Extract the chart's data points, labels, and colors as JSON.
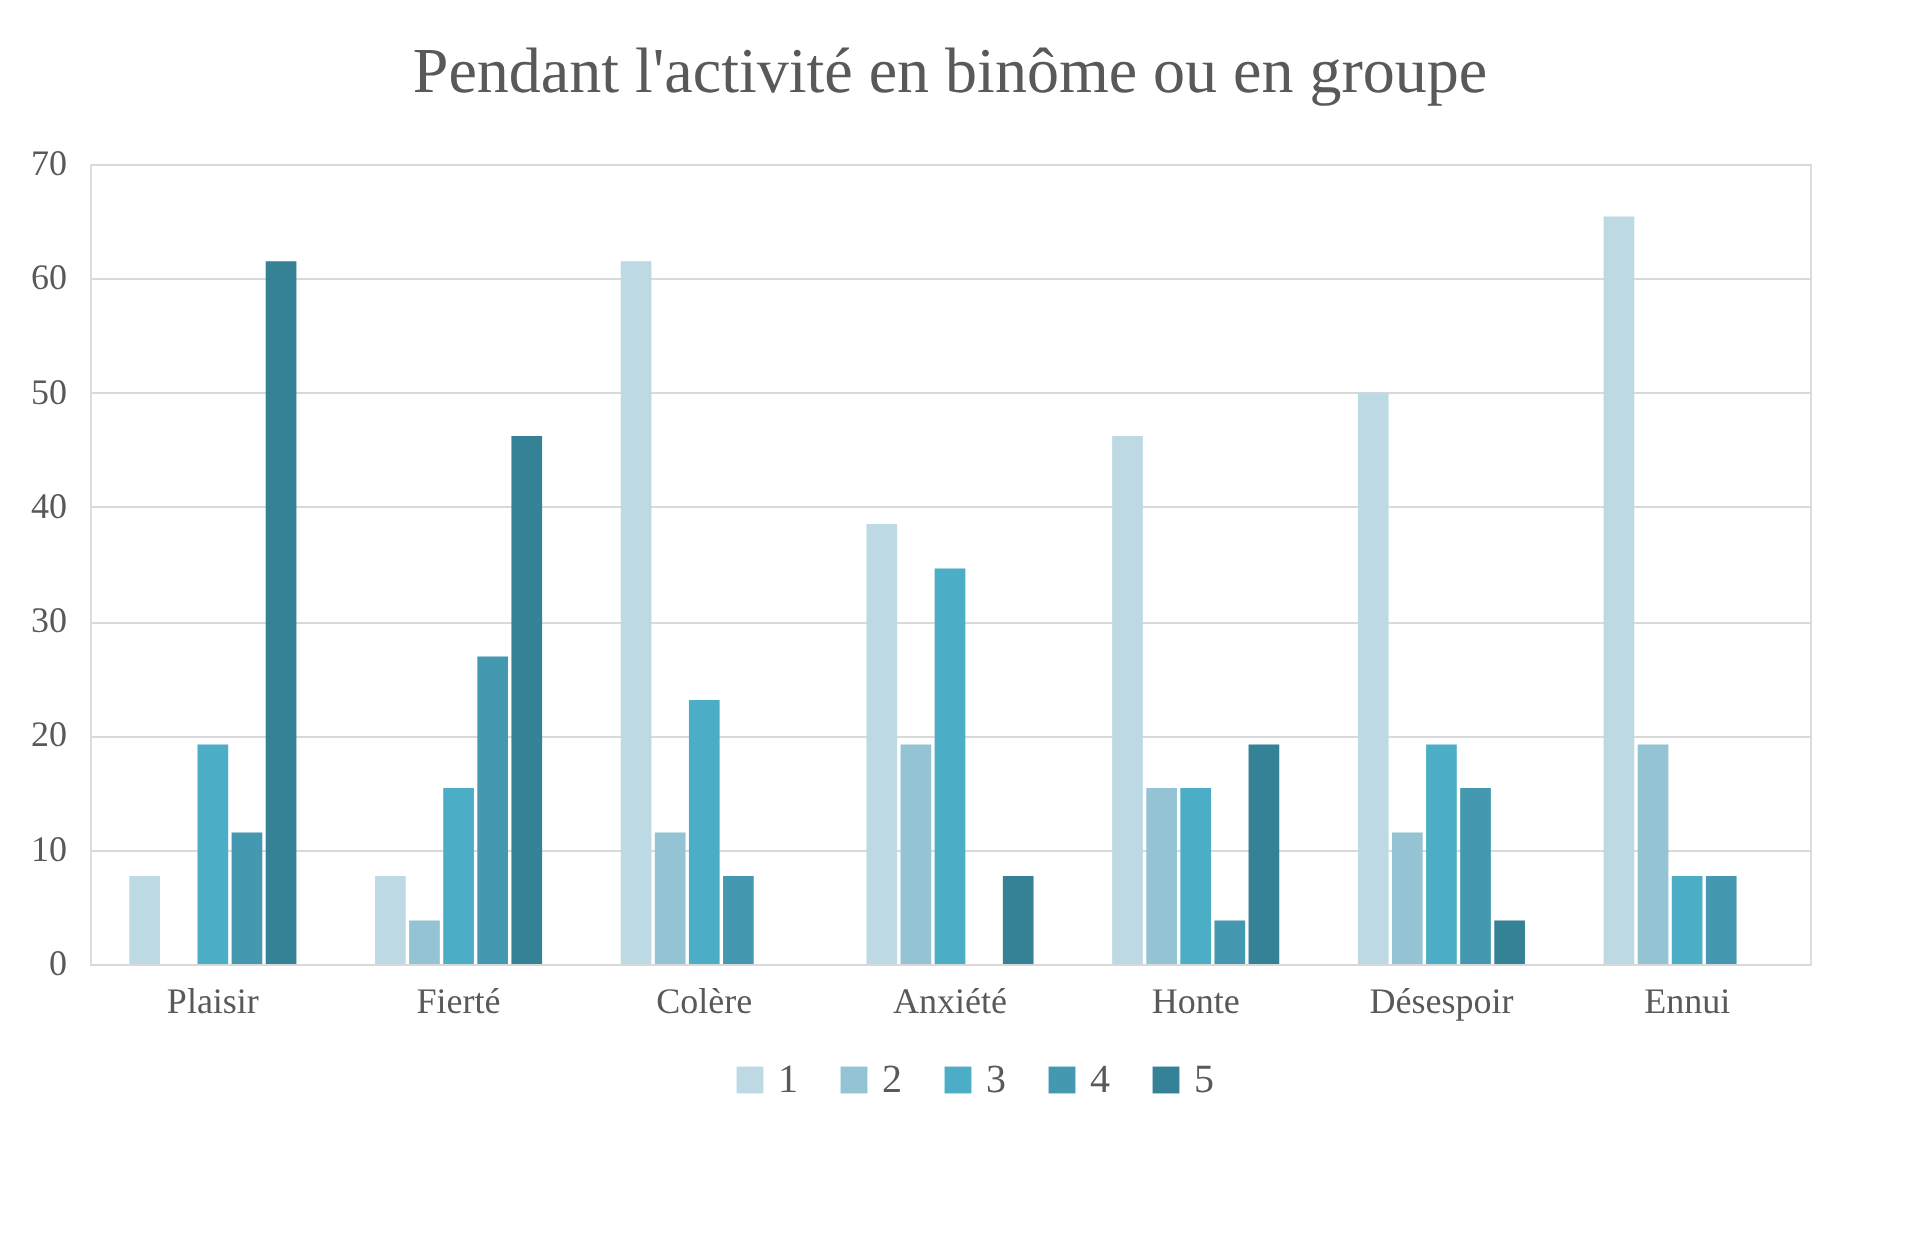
{
  "chart_data": {
    "type": "bar",
    "title": "Pendant l'activité en binôme ou en groupe",
    "categories": [
      "Plaisir",
      "Fierté",
      "Colère",
      "Anxiété",
      "Honte",
      "Désespoir",
      "Ennui"
    ],
    "series": [
      {
        "name": "1",
        "color": "#bdd9e4",
        "values": [
          7.7,
          7.7,
          61.5,
          38.5,
          46.2,
          50,
          65.4
        ]
      },
      {
        "name": "2",
        "color": "#94c3d4",
        "values": [
          0,
          3.8,
          11.5,
          19.2,
          15.4,
          11.5,
          19.2
        ]
      },
      {
        "name": "3",
        "color": "#4badc6",
        "values": [
          19.2,
          15.4,
          23.1,
          34.6,
          15.4,
          19.2,
          7.7
        ]
      },
      {
        "name": "4",
        "color": "#4499b0",
        "values": [
          11.5,
          26.9,
          7.7,
          0,
          3.8,
          15.4,
          7.7
        ]
      },
      {
        "name": "5",
        "color": "#358195",
        "values": [
          61.5,
          46.2,
          0,
          7.7,
          19.2,
          3.8,
          0
        ]
      }
    ],
    "ylim": [
      0,
      70
    ],
    "yticks": [
      0,
      10,
      20,
      30,
      40,
      50,
      60,
      70
    ],
    "grid": "y",
    "legend": "bottom"
  }
}
